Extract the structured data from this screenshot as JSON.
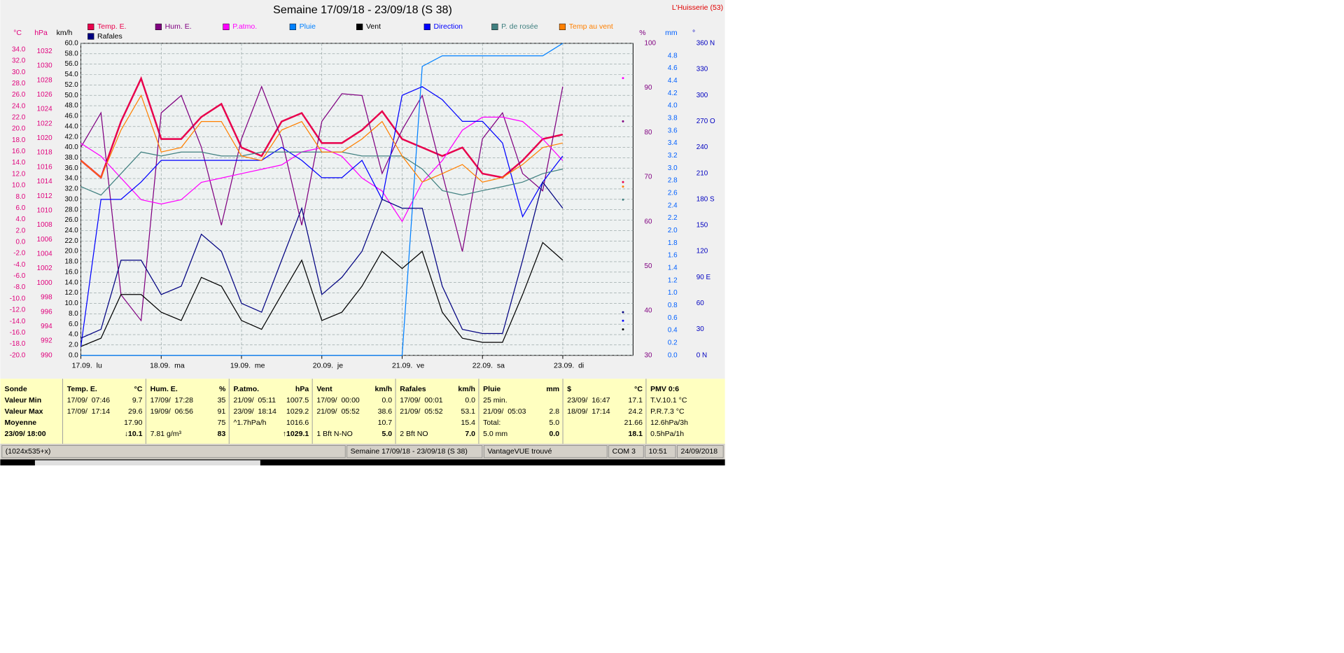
{
  "header": {
    "title": "Semaine 17/09/18 - 23/09/18 (S 38)",
    "station": "L'Huisserie (53)"
  },
  "chart_data": {
    "type": "line",
    "x": [
      0,
      6,
      12,
      18,
      24,
      30,
      36,
      42,
      48,
      54,
      60,
      66,
      72,
      78,
      84,
      90,
      96,
      102,
      108,
      114,
      120,
      126,
      132,
      138,
      144,
      150,
      156,
      162
    ],
    "xlim": [
      0,
      165
    ],
    "xticks": [
      {
        "value": 0,
        "label": "17.09.  lu"
      },
      {
        "value": 24,
        "label": "18.09.  ma"
      },
      {
        "value": 48,
        "label": "19.09.  me"
      },
      {
        "value": 72,
        "label": "20.09.  je"
      },
      {
        "value": 96,
        "label": "21.09.  ve"
      },
      {
        "value": 120,
        "label": "22.09.  sa"
      },
      {
        "value": 144,
        "label": "23.09.  di"
      }
    ],
    "grid": true,
    "axes": [
      {
        "label": "°C",
        "color": "#e0007c",
        "ylim": [
          -20,
          35.1
        ],
        "yticks": [
          {
            "value": -20,
            "label": "-20.0"
          },
          {
            "value": -18,
            "label": "-18.0"
          },
          {
            "value": -16,
            "label": "-16.0"
          },
          {
            "value": -14,
            "label": "-14.0"
          },
          {
            "value": -12,
            "label": "-12.0"
          },
          {
            "value": -10,
            "label": "-10.0"
          },
          {
            "value": -8,
            "label": "-8.0"
          },
          {
            "value": -6,
            "label": "-6.0"
          },
          {
            "value": -4,
            "label": "-4.0"
          },
          {
            "value": -2,
            "label": "-2.0"
          },
          {
            "value": 0,
            "label": "0.0"
          },
          {
            "value": 2,
            "label": "2.0"
          },
          {
            "value": 4,
            "label": "4.0"
          },
          {
            "value": 6,
            "label": "6.0"
          },
          {
            "value": 8,
            "label": "8.0"
          },
          {
            "value": 10,
            "label": "10.0"
          },
          {
            "value": 12,
            "label": "12.0"
          },
          {
            "value": 14,
            "label": "14.0"
          },
          {
            "value": 16,
            "label": "16.0"
          },
          {
            "value": 18,
            "label": "18.0"
          },
          {
            "value": 20,
            "label": "20.0"
          },
          {
            "value": 22,
            "label": "22.0"
          },
          {
            "value": 24,
            "label": "24.0"
          },
          {
            "value": 26,
            "label": "26.0"
          },
          {
            "value": 28,
            "label": "28.0"
          },
          {
            "value": 30,
            "label": "30.0"
          },
          {
            "value": 32,
            "label": "32.0"
          },
          {
            "value": 34,
            "label": "34.0"
          }
        ]
      },
      {
        "label": "hPa",
        "color": "#e0007c",
        "ylim": [
          990,
          1033.1
        ],
        "yticks": [
          990,
          992,
          994,
          996,
          998,
          1000,
          1002,
          1004,
          1006,
          1008,
          1010,
          1012,
          1014,
          1016,
          1018,
          1020,
          1022,
          1024,
          1026,
          1028,
          1030,
          1032
        ]
      },
      {
        "label": "km/h",
        "color": "#000000",
        "ylim": [
          0,
          60
        ],
        "yticks": [
          {
            "value": 0,
            "label": "0.0"
          },
          {
            "value": 2,
            "label": "2.0"
          },
          {
            "value": 4,
            "label": "4.0"
          },
          {
            "value": 6,
            "label": "6.0"
          },
          {
            "value": 8,
            "label": "8.0"
          },
          {
            "value": 10,
            "label": "10.0"
          },
          {
            "value": 12,
            "label": "12.0"
          },
          {
            "value": 14,
            "label": "14.0"
          },
          {
            "value": 16,
            "label": "16.0"
          },
          {
            "value": 18,
            "label": "18.0"
          },
          {
            "value": 20,
            "label": "20.0"
          },
          {
            "value": 22,
            "label": "22.0"
          },
          {
            "value": 24,
            "label": "24.0"
          },
          {
            "value": 26,
            "label": "26.0"
          },
          {
            "value": 28,
            "label": "28.0"
          },
          {
            "value": 30,
            "label": "30.0"
          },
          {
            "value": 32,
            "label": "32.0"
          },
          {
            "value": 34,
            "label": "34.0"
          },
          {
            "value": 36,
            "label": "36.0"
          },
          {
            "value": 38,
            "label": "38.0"
          },
          {
            "value": 40,
            "label": "40.0"
          },
          {
            "value": 42,
            "label": "42.0"
          },
          {
            "value": 44,
            "label": "44.0"
          },
          {
            "value": 46,
            "label": "46.0"
          },
          {
            "value": 48,
            "label": "48.0"
          },
          {
            "value": 50,
            "label": "50.0"
          },
          {
            "value": 52,
            "label": "52.0"
          },
          {
            "value": 54,
            "label": "54.0"
          },
          {
            "value": 56,
            "label": "56.0"
          },
          {
            "value": 58,
            "label": "58.0"
          },
          {
            "value": 60,
            "label": "60.0"
          }
        ]
      },
      {
        "label": "%",
        "color": "#800080",
        "ylim": [
          30,
          100
        ],
        "yticks": [
          30,
          40,
          50,
          60,
          70,
          80,
          90,
          100
        ]
      },
      {
        "label": "mm",
        "color": "#0060ff",
        "ylim": [
          0,
          5.0
        ],
        "yticks": [
          {
            "value": 0,
            "label": "0.0"
          },
          0.2,
          0.4,
          0.6,
          0.8,
          {
            "value": 1,
            "label": "1.0"
          },
          1.2,
          1.4,
          1.6,
          1.8,
          {
            "value": 2,
            "label": "2.0"
          },
          2.2,
          2.4,
          2.6,
          2.8,
          {
            "value": 3,
            "label": "3.0"
          },
          3.2,
          3.4,
          3.6,
          3.8,
          {
            "value": 4,
            "label": "4.0"
          },
          4.2,
          4.4,
          4.6,
          4.8
        ]
      },
      {
        "label": "°",
        "color": "#0000c0",
        "ylim": [
          0,
          360
        ],
        "yticks": [
          {
            "value": 0,
            "label": "0   N"
          },
          30,
          60,
          {
            "value": 90,
            "label": "90  E"
          },
          120,
          150,
          {
            "value": 180,
            "label": "180 S"
          },
          210,
          240,
          {
            "value": 270,
            "label": "270 O"
          },
          300,
          330,
          {
            "value": 360,
            "label": "360 N"
          }
        ]
      }
    ],
    "series": [
      {
        "name": "Temp. E.",
        "color": "#e8004c",
        "axis": 0,
        "values": [
          14.4,
          11.4,
          21.3,
          28.9,
          18.2,
          18.2,
          22.1,
          24.4,
          16.7,
          15.2,
          21.3,
          22.8,
          17.5,
          17.5,
          19.8,
          23.1,
          18.2,
          16.7,
          15.2,
          16.7,
          12.1,
          11.4,
          14.4,
          18.2,
          19.0,
          null,
          null,
          10.6
        ]
      },
      {
        "name": "Hum. E.",
        "color": "#800080",
        "axis": 3,
        "values": [
          76.7,
          84.4,
          43.6,
          37.8,
          84.4,
          88.3,
          76.7,
          59.2,
          78.6,
          90.3,
          78.6,
          59.2,
          82.5,
          88.7,
          88.3,
          70.8,
          80.6,
          88.3,
          70.8,
          53.3,
          78.6,
          84.4,
          70.8,
          66.9,
          90.3,
          null,
          null,
          82.5
        ]
      },
      {
        "name": "P.atmo.",
        "color": "#ff00ff",
        "axis": 1,
        "values": [
          1019.3,
          1017.5,
          1014.5,
          1011.5,
          1010.9,
          1011.5,
          1013.9,
          1014.5,
          1015.1,
          1015.7,
          1016.3,
          1018.1,
          1018.7,
          1017.5,
          1014.5,
          1012.7,
          1008.5,
          1013.9,
          1016.9,
          1021.1,
          1022.9,
          1022.9,
          1022.3,
          1019.9,
          1016.9,
          null,
          null,
          1028.3
        ]
      },
      {
        "name": "Pluie",
        "color": "#0080ff",
        "axis": 4,
        "values": [
          0,
          0,
          0,
          0,
          0,
          0,
          0,
          0,
          0,
          0,
          0,
          0,
          0,
          0,
          0,
          0,
          0,
          4.63,
          4.8,
          4.8,
          4.8,
          4.8,
          4.8,
          4.8,
          5.0,
          null,
          null,
          null
        ]
      },
      {
        "name": "Vent",
        "color": "#000000",
        "axis": 2,
        "values": [
          1.7,
          3.3,
          11.7,
          11.7,
          8.3,
          6.7,
          15,
          13.3,
          6.7,
          5,
          11.7,
          18.3,
          6.7,
          8.3,
          13.3,
          20,
          16.7,
          20,
          8.3,
          3.3,
          2.5,
          2.5,
          11.7,
          21.7,
          18.3,
          null,
          null,
          5
        ]
      },
      {
        "name": "Direction",
        "color": "#0000ff",
        "axis": 5,
        "values": [
          10,
          180,
          180,
          200,
          225,
          225,
          225,
          225,
          225,
          225,
          240,
          225,
          205,
          205,
          225,
          180,
          300,
          310,
          295,
          270,
          270,
          245,
          160,
          200,
          230,
          null,
          null,
          40
        ]
      },
      {
        "name": "P. de rosée",
        "color": "#408080",
        "axis": 0,
        "values": [
          9.8,
          8.3,
          12.1,
          15.9,
          15.2,
          15.9,
          15.9,
          15.2,
          15.2,
          15.9,
          15.9,
          15.9,
          15.9,
          15.9,
          15.2,
          15.2,
          15.2,
          12.9,
          9.1,
          8.3,
          9.1,
          9.8,
          10.6,
          12.1,
          12.9,
          null,
          null,
          7.5
        ]
      },
      {
        "name": "Temp au vent",
        "color": "#ff8000",
        "axis": 0,
        "values": [
          14.4,
          11.4,
          19.8,
          25.9,
          15.9,
          16.7,
          21.3,
          21.3,
          15.2,
          14.4,
          19.8,
          21.3,
          15.9,
          15.9,
          18.2,
          21.3,
          15.2,
          10.6,
          12.1,
          13.7,
          10.6,
          11.4,
          13.7,
          16.7,
          17.5,
          null,
          null,
          9.8
        ]
      },
      {
        "name": "Rafales",
        "color": "#000080",
        "axis": 2,
        "values": [
          3.3,
          5,
          18.3,
          18.3,
          11.7,
          13.3,
          23.3,
          20,
          10,
          8.3,
          18.3,
          28.3,
          11.7,
          15,
          20,
          30,
          28.3,
          28.3,
          13.3,
          5,
          4.2,
          4.2,
          18.3,
          33.3,
          28.3,
          null,
          null,
          8.3
        ]
      }
    ]
  },
  "table": {
    "columns": [
      {
        "header": {
          "left": "Sonde"
        },
        "rows": [
          {
            "left": "Valeur Min"
          },
          {
            "left": "Valeur Max"
          },
          {
            "left": "Moyenne"
          },
          {
            "left": "23/09/ 18:00"
          }
        ]
      },
      {
        "header": {
          "left": "Temp. E.",
          "right": "°C"
        },
        "rows": [
          {
            "left": "17/09/  07:46",
            "right": "9.7"
          },
          {
            "left": "17/09/  17:14",
            "right": "29.6"
          },
          {
            "right": "17.90"
          },
          {
            "right": "↓10.1"
          }
        ]
      },
      {
        "header": {
          "left": "Hum. E.",
          "right": "%"
        },
        "rows": [
          {
            "left": "17/09/  17:28",
            "right": "35"
          },
          {
            "left": "19/09/  06:56",
            "right": "91"
          },
          {
            "right": "75"
          },
          {
            "left": "7.81 g/m³",
            "right": "83"
          }
        ]
      },
      {
        "header": {
          "left": "P.atmo.",
          "right": "hPa"
        },
        "rows": [
          {
            "left": "21/09/  05:11",
            "right": "1007.5"
          },
          {
            "left": "23/09/  18:14",
            "right": "1029.2"
          },
          {
            "left": "^1.7hPa/h",
            "right": "1016.6"
          },
          {
            "right": "↑1029.1"
          }
        ]
      },
      {
        "header": {
          "left": "Vent",
          "right": "km/h"
        },
        "rows": [
          {
            "left": "17/09/  00:00",
            "right": "0.0"
          },
          {
            "left": "21/09/  05:52",
            "right": "38.6"
          },
          {
            "right": "10.7"
          },
          {
            "left": "1 Bft N-NO",
            "right": "5.0"
          }
        ]
      },
      {
        "header": {
          "left": "Rafales",
          "right": "km/h"
        },
        "rows": [
          {
            "left": "17/09/  00:01",
            "right": "0.0"
          },
          {
            "left": "21/09/  05:52",
            "right": "53.1"
          },
          {
            "right": "15.4"
          },
          {
            "left": "2 Bft NO",
            "right": "7.0"
          }
        ]
      },
      {
        "header": {
          "left": "Pluie",
          "right": "mm"
        },
        "rows": [
          {
            "left": "25 min."
          },
          {
            "left": "21/09/  05:03",
            "right": "2.8"
          },
          {
            "left": "Total:",
            "right": "5.0"
          },
          {
            "left": "5.0 mm",
            "right": "0.0"
          }
        ]
      },
      {
        "header": {
          "left": "$",
          "right": "°C"
        },
        "rows": [
          {
            "left": "23/09/  16:47",
            "right": "17.1"
          },
          {
            "left": "18/09/  17:14",
            "right": "24.2"
          },
          {
            "right": "21.66"
          },
          {
            "right": "18.1"
          }
        ]
      },
      {
        "header": {
          "left": "PMV 0:6"
        },
        "rows": [
          {
            "left": "T.V.10.1 °C"
          },
          {
            "left": "P.R.7.3 °C"
          },
          {
            "left": "12.6hPa/3h"
          },
          {
            "left": "0.5hPa/1h"
          }
        ]
      }
    ]
  },
  "status_bar": [
    "(1024x535+x)",
    "Semaine 17/09/18 - 23/09/18 (S 38)",
    "VantageVUE trouvé",
    "COM 3",
    "10:51",
    "24/09/2018"
  ]
}
